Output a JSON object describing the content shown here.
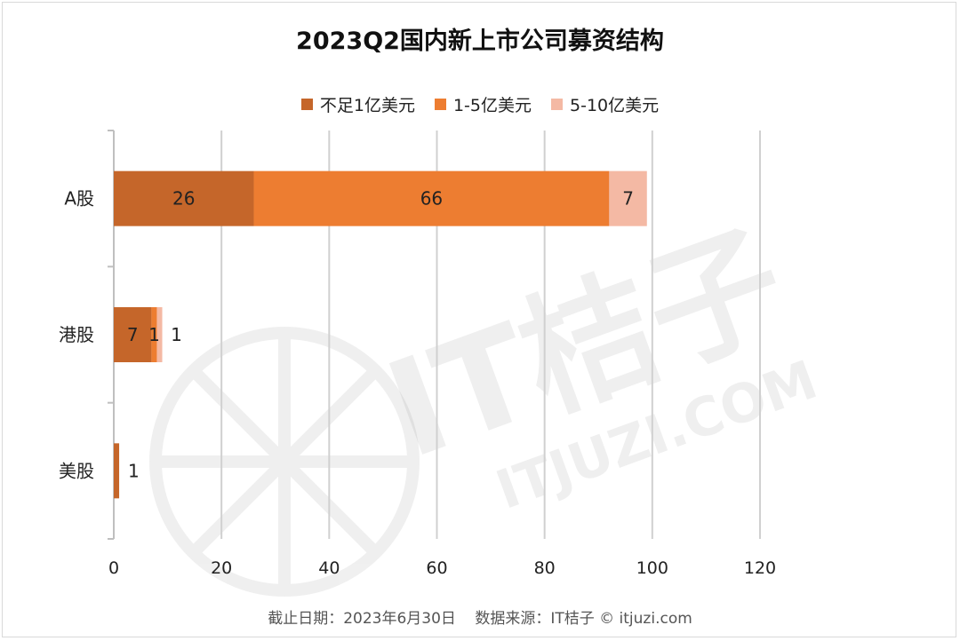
{
  "title": "2023Q2国内新上市公司募资结构",
  "footer": {
    "date_label": "截止日期：2023年6月30日",
    "source_label": "数据来源：IT桔子 © itjuzi.com"
  },
  "watermark": {
    "brand": "IT桔子",
    "domain": "ITJUZI.COM"
  },
  "chart_data": {
    "type": "bar",
    "orientation": "horizontal",
    "stacked": true,
    "title": "2023Q2国内新上市公司募资结构",
    "categories": [
      "A股",
      "港股",
      "美股"
    ],
    "series": [
      {
        "name": "不足1亿美元",
        "values": [
          26,
          7,
          1
        ],
        "color": "#C5662A"
      },
      {
        "name": "1-5亿美元",
        "values": [
          66,
          1,
          0
        ],
        "color": "#ED7D31"
      },
      {
        "name": "5-10亿美元",
        "values": [
          7,
          1,
          0
        ],
        "color": "#F4B9A4"
      }
    ],
    "xlim": [
      0,
      120
    ],
    "xticks": [
      0,
      20,
      40,
      60,
      80,
      100,
      120
    ],
    "grid": true,
    "legend_position": "top"
  }
}
